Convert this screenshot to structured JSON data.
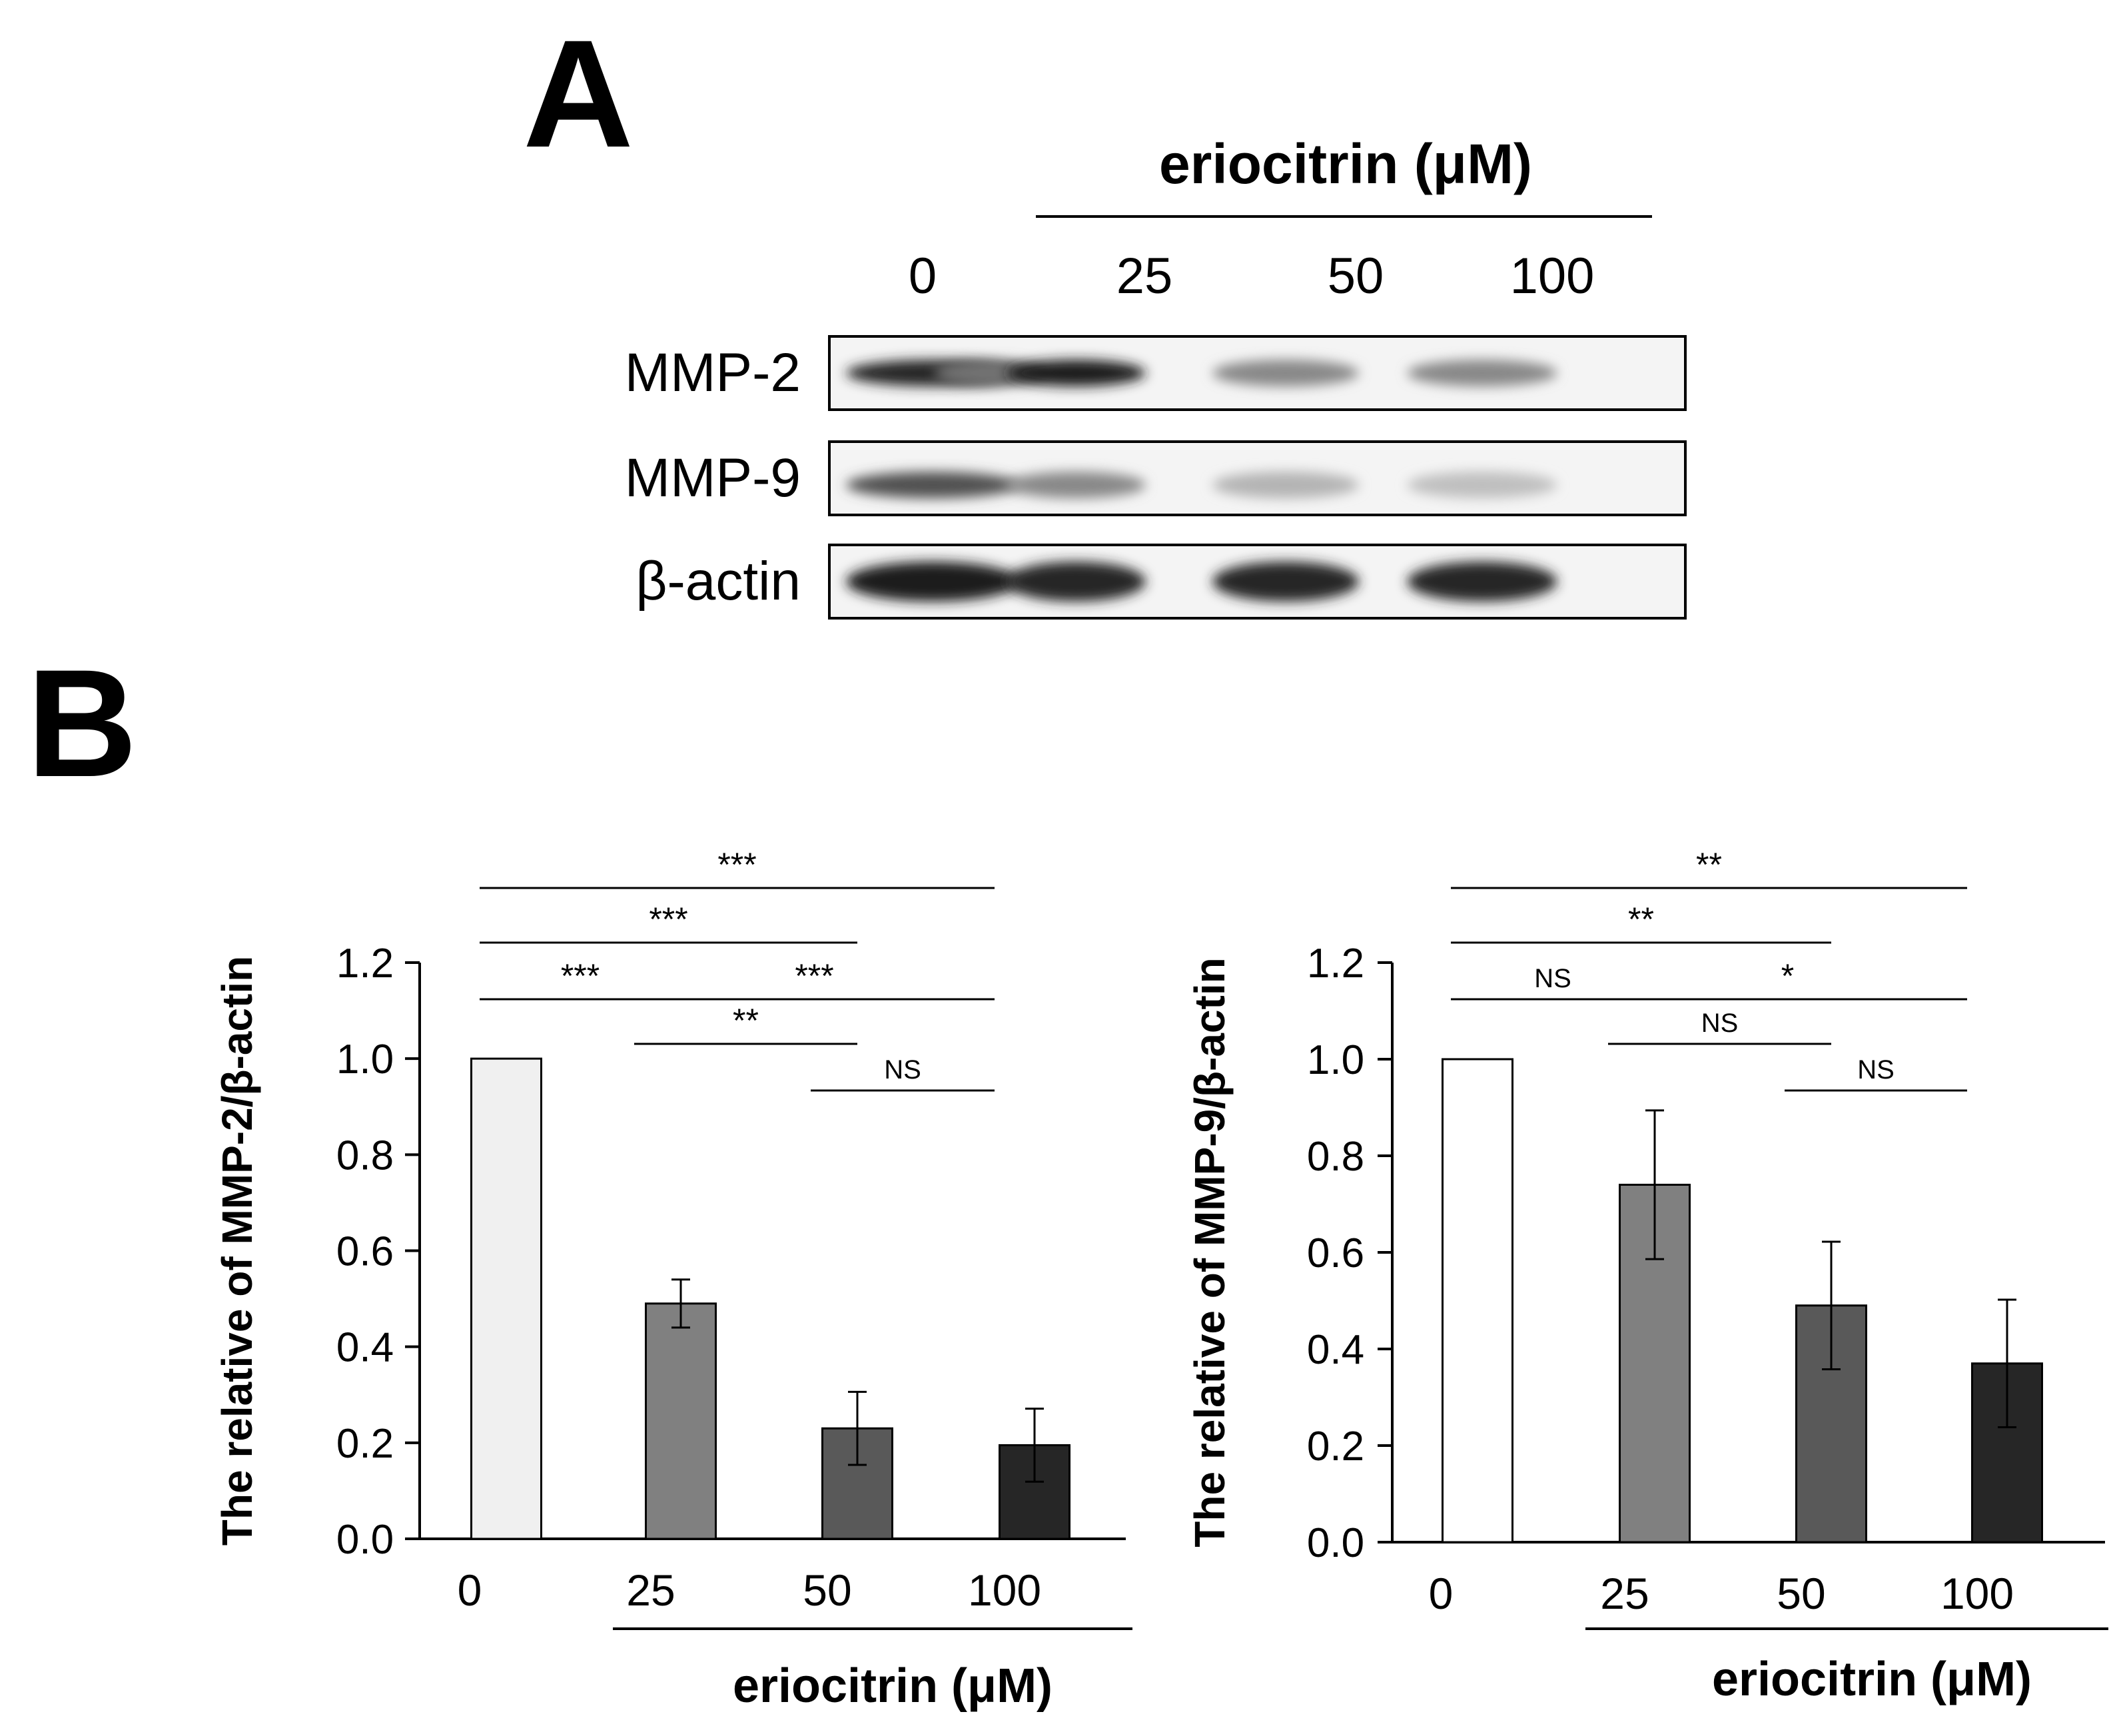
{
  "panel_a": {
    "letter": "A",
    "header": "eriocitrin (μM)",
    "lanes": [
      "0",
      "25",
      "50",
      "100"
    ],
    "rows": [
      {
        "label": "MMP-2",
        "bands": [
          {
            "lane": 0,
            "intensity": 0.9
          },
          {
            "lane": 0.5,
            "intensity": 0.55
          },
          {
            "lane": 1,
            "intensity": 0.95
          },
          {
            "lane": 2,
            "intensity": 0.45
          },
          {
            "lane": 3,
            "intensity": 0.45
          }
        ]
      },
      {
        "label": "MMP-9",
        "bands": [
          {
            "lane": 0,
            "intensity": 0.7
          },
          {
            "lane": 1,
            "intensity": 0.45
          },
          {
            "lane": 2,
            "intensity": 0.25
          },
          {
            "lane": 3,
            "intensity": 0.2
          }
        ]
      },
      {
        "label": "β-actin",
        "bands": [
          {
            "lane": 0,
            "intensity": 0.95
          },
          {
            "lane": 1,
            "intensity": 0.9
          },
          {
            "lane": 2,
            "intensity": 0.9
          },
          {
            "lane": 3,
            "intensity": 0.9
          }
        ]
      }
    ]
  },
  "panel_b": {
    "letter": "B"
  },
  "chart_data": [
    {
      "type": "bar",
      "categories": [
        "0",
        "25",
        "50",
        "100"
      ],
      "values": [
        1.0,
        0.49,
        0.23,
        0.195
      ],
      "errors": [
        0,
        0.05,
        0.076,
        0.076
      ],
      "bar_colors": [
        "#f0f0f0",
        "#808080",
        "#595959",
        "#262626"
      ],
      "ylabel": "The relative of MMP-2/β-actin",
      "xlabel": "eriocitrin  (μM)",
      "ylim": [
        0,
        1.2
      ],
      "yticks": [
        "0.0",
        "0.2",
        "0.4",
        "0.6",
        "0.8",
        "1.0",
        "1.2"
      ],
      "significance": [
        {
          "from": 0,
          "to": 1,
          "label": "***"
        },
        {
          "from": 1,
          "to": 3,
          "label": "***"
        },
        {
          "from": 1,
          "to": 2,
          "label": "**"
        },
        {
          "from": 2,
          "to": 3,
          "label": "NS"
        },
        {
          "from": 0,
          "to": 2,
          "label": "***"
        },
        {
          "from": 0,
          "to": 3,
          "label": "***"
        }
      ]
    },
    {
      "type": "bar",
      "categories": [
        "0",
        "25",
        "50",
        "100"
      ],
      "values": [
        1.0,
        0.74,
        0.49,
        0.37
      ],
      "errors": [
        0,
        0.154,
        0.132,
        0.132
      ],
      "bar_colors": [
        "#ffffff",
        "#808080",
        "#595959",
        "#262626"
      ],
      "ylabel": "The relative of MMP-9/β-actin",
      "xlabel": "eriocitrin  (μM)",
      "ylim": [
        0,
        1.2
      ],
      "yticks": [
        "0.0",
        "0.2",
        "0.4",
        "0.6",
        "0.8",
        "1.0",
        "1.2"
      ],
      "significance": [
        {
          "from": 0,
          "to": 1,
          "label": "NS"
        },
        {
          "from": 1,
          "to": 3,
          "label": "*"
        },
        {
          "from": 1,
          "to": 2,
          "label": "NS"
        },
        {
          "from": 2,
          "to": 3,
          "label": "NS"
        },
        {
          "from": 0,
          "to": 2,
          "label": "**"
        },
        {
          "from": 0,
          "to": 3,
          "label": "**"
        }
      ]
    }
  ]
}
